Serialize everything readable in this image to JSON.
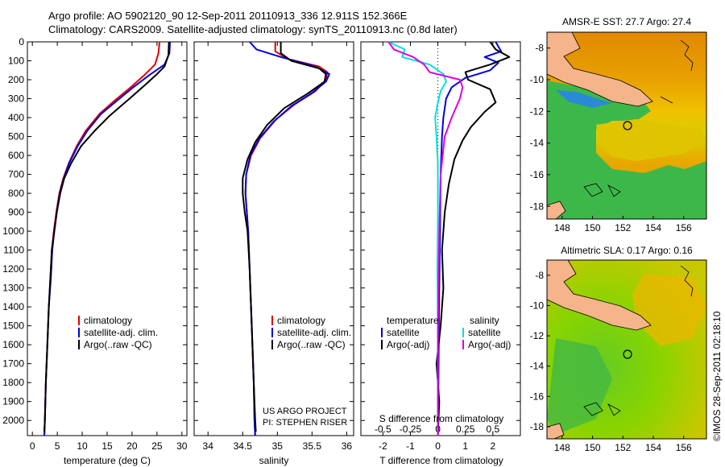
{
  "header": {
    "title_line1": "Argo profile: AO 5902120_90 12-Sep-2011 20110913_336 12.911S 152.366E",
    "title_line2": "Climatology: CARS2009. Satellite-adjusted climatology: synTS_20110913.nc (0.8d later)"
  },
  "colors": {
    "clim": "#e00000",
    "sat": "#0000e0",
    "argo": "#000000",
    "sal_sat": "#00e0e0",
    "sal_argo": "#e000e0"
  },
  "chart_data": [
    {
      "id": "temperature",
      "type": "line",
      "xlabel": "temperature (deg C)",
      "ylabel": "",
      "xlim": [
        -1,
        31
      ],
      "ylim": [
        0,
        2080
      ],
      "xticks": [
        0,
        5,
        10,
        15,
        20,
        25,
        30
      ],
      "yticks": [
        0,
        100,
        200,
        300,
        400,
        500,
        600,
        700,
        800,
        900,
        1000,
        1100,
        1200,
        1300,
        1400,
        1500,
        1600,
        1700,
        1800,
        1900,
        2000
      ],
      "legend": [
        "climatology",
        "satellite-adj. clim.",
        "Argo(..raw -QC)"
      ],
      "series": [
        {
          "name": "climatology",
          "color": "#e00000",
          "points": [
            [
              25.5,
              0
            ],
            [
              25.3,
              60
            ],
            [
              24.6,
              120
            ],
            [
              22.5,
              175
            ],
            [
              19.5,
              245
            ],
            [
              16.5,
              310
            ],
            [
              13.5,
              380
            ],
            [
              10.7,
              470
            ],
            [
              8.9,
              550
            ],
            [
              7.3,
              640
            ],
            [
              6.2,
              720
            ],
            [
              5.4,
              800
            ],
            [
              4.8,
              900
            ],
            [
              4.3,
              1000
            ],
            [
              3.9,
              1100
            ],
            [
              3.6,
              1250
            ],
            [
              3.3,
              1400
            ],
            [
              3.0,
              1600
            ],
            [
              2.7,
              1800
            ],
            [
              2.5,
              2000
            ],
            [
              2.4,
              2080
            ]
          ]
        },
        {
          "name": "satellite-adj. clim.",
          "color": "#0000e0",
          "points": [
            [
              27.6,
              0
            ],
            [
              27.5,
              60
            ],
            [
              26.5,
              120
            ],
            [
              23.5,
              175
            ],
            [
              20.0,
              245
            ],
            [
              17.0,
              310
            ],
            [
              13.8,
              380
            ],
            [
              11.0,
              470
            ],
            [
              9.1,
              550
            ],
            [
              7.4,
              640
            ],
            [
              6.3,
              720
            ],
            [
              5.5,
              800
            ],
            [
              4.9,
              900
            ],
            [
              4.4,
              1000
            ],
            [
              4.0,
              1100
            ],
            [
              3.7,
              1250
            ],
            [
              3.3,
              1400
            ],
            [
              3.0,
              1600
            ],
            [
              2.7,
              1800
            ],
            [
              2.5,
              2000
            ],
            [
              2.4,
              2080
            ]
          ]
        },
        {
          "name": "Argo(..raw -QC)",
          "color": "#000000",
          "points": [
            [
              27.4,
              0
            ],
            [
              27.3,
              70
            ],
            [
              26.5,
              130
            ],
            [
              25.0,
              170
            ],
            [
              22.5,
              230
            ],
            [
              19.5,
              300
            ],
            [
              15.5,
              390
            ],
            [
              12.5,
              470
            ],
            [
              9.8,
              550
            ],
            [
              7.8,
              640
            ],
            [
              6.4,
              720
            ],
            [
              5.6,
              800
            ],
            [
              4.9,
              900
            ],
            [
              4.4,
              1000
            ],
            [
              3.9,
              1100
            ],
            [
              3.6,
              1250
            ],
            [
              3.3,
              1400
            ],
            [
              3.0,
              1600
            ],
            [
              2.7,
              1800
            ],
            [
              2.5,
              2000
            ],
            [
              2.4,
              2060
            ]
          ]
        }
      ]
    },
    {
      "id": "salinity",
      "type": "line",
      "xlabel": "salinity",
      "ylabel": "",
      "xlim": [
        33.8,
        36.1
      ],
      "ylim": [
        0,
        2080
      ],
      "xticks": [
        34,
        34.5,
        35,
        35.5,
        36
      ],
      "legend": [
        "climatology",
        "satellite-adj. clim.",
        "Argo(..raw -QC)"
      ],
      "annotations": [
        "US ARGO PROJECT",
        "PI: STEPHEN RISER"
      ],
      "series": [
        {
          "name": "climatology",
          "color": "#e00000",
          "points": [
            [
              34.97,
              0
            ],
            [
              34.97,
              50
            ],
            [
              35.15,
              90
            ],
            [
              35.6,
              130
            ],
            [
              35.72,
              160
            ],
            [
              35.7,
              200
            ],
            [
              35.55,
              260
            ],
            [
              35.25,
              330
            ],
            [
              34.98,
              410
            ],
            [
              34.75,
              510
            ],
            [
              34.62,
              600
            ],
            [
              34.55,
              700
            ],
            [
              34.54,
              800
            ],
            [
              34.56,
              900
            ],
            [
              34.58,
              1000
            ],
            [
              34.6,
              1200
            ],
            [
              34.63,
              1500
            ],
            [
              34.66,
              1800
            ],
            [
              34.67,
              2000
            ],
            [
              34.68,
              2080
            ]
          ]
        },
        {
          "name": "satellite-adj. clim.",
          "color": "#0000e0",
          "points": [
            [
              34.6,
              0
            ],
            [
              34.7,
              40
            ],
            [
              35.05,
              80
            ],
            [
              35.55,
              130
            ],
            [
              35.75,
              170
            ],
            [
              35.7,
              210
            ],
            [
              35.5,
              270
            ],
            [
              35.2,
              340
            ],
            [
              34.95,
              420
            ],
            [
              34.74,
              510
            ],
            [
              34.61,
              600
            ],
            [
              34.55,
              700
            ],
            [
              34.54,
              800
            ],
            [
              34.56,
              900
            ],
            [
              34.58,
              1000
            ],
            [
              34.6,
              1200
            ],
            [
              34.63,
              1500
            ],
            [
              34.66,
              1800
            ],
            [
              34.67,
              2000
            ],
            [
              34.68,
              2080
            ]
          ]
        },
        {
          "name": "Argo(..raw -QC)",
          "color": "#000000",
          "points": [
            [
              35.05,
              0
            ],
            [
              35.05,
              60
            ],
            [
              35.2,
              100
            ],
            [
              35.6,
              140
            ],
            [
              35.7,
              170
            ],
            [
              35.68,
              210
            ],
            [
              35.45,
              270
            ],
            [
              35.1,
              350
            ],
            [
              34.85,
              440
            ],
            [
              34.68,
              530
            ],
            [
              34.57,
              620
            ],
            [
              34.5,
              720
            ],
            [
              34.5,
              800
            ],
            [
              34.53,
              900
            ],
            [
              34.57,
              1000
            ],
            [
              34.6,
              1200
            ],
            [
              34.63,
              1500
            ],
            [
              34.66,
              1800
            ],
            [
              34.68,
              2000
            ],
            [
              34.69,
              2060
            ]
          ]
        }
      ]
    },
    {
      "id": "differences",
      "type": "line",
      "xlabel": "T difference from climatology",
      "ylabel": "",
      "secondary_xlabel": "S difference from climatology",
      "xlim": [
        -2.8,
        3
      ],
      "ylim": [
        0,
        2080
      ],
      "xticks": [
        -2,
        -1,
        0,
        1,
        2
      ],
      "secondary_xticks": [
        "-0.5",
        "-0.25",
        "0",
        "0.25",
        "0.5"
      ],
      "legend": [
        "temperature",
        "satellite",
        "Argo(-adj)",
        "salinity",
        "satellite",
        "Argo(-adj)"
      ],
      "series": [
        {
          "name": "T satellite",
          "color": "#0000e0",
          "points": [
            [
              2.1,
              0
            ],
            [
              2.3,
              50
            ],
            [
              1.7,
              80
            ],
            [
              2.2,
              110
            ],
            [
              1.9,
              150
            ],
            [
              1.0,
              190
            ],
            [
              0.5,
              240
            ],
            [
              0.3,
              300
            ],
            [
              0.2,
              400
            ],
            [
              0.15,
              500
            ],
            [
              0.1,
              700
            ],
            [
              0.08,
              1000
            ],
            [
              0.04,
              1400
            ],
            [
              0.02,
              1800
            ],
            [
              0,
              2080
            ]
          ]
        },
        {
          "name": "T Argo(-adj)",
          "color": "#000000",
          "points": [
            [
              1.9,
              0
            ],
            [
              2.1,
              40
            ],
            [
              2.6,
              80
            ],
            [
              1.9,
              120
            ],
            [
              1.0,
              160
            ],
            [
              1.1,
              200
            ],
            [
              1.9,
              250
            ],
            [
              2.1,
              320
            ],
            [
              1.7,
              370
            ],
            [
              1.2,
              450
            ],
            [
              0.9,
              520
            ],
            [
              0.6,
              620
            ],
            [
              0.4,
              750
            ],
            [
              0.25,
              900
            ],
            [
              0.15,
              1100
            ],
            [
              0.2,
              1300
            ],
            [
              0.1,
              1500
            ],
            [
              -0.05,
              1700
            ],
            [
              0.05,
              1900
            ],
            [
              0,
              2080
            ]
          ]
        },
        {
          "name": "S satellite",
          "color": "#00e0e0",
          "points": [
            [
              -1.8,
              0
            ],
            [
              -1.2,
              40
            ],
            [
              -1.3,
              80
            ],
            [
              -0.3,
              120
            ],
            [
              0.2,
              170
            ],
            [
              0.3,
              210
            ],
            [
              0.1,
              260
            ],
            [
              0.0,
              320
            ],
            [
              -0.1,
              400
            ],
            [
              -0.05,
              500
            ],
            [
              0.0,
              650
            ],
            [
              0.0,
              900
            ],
            [
              -0.02,
              1200
            ],
            [
              0.0,
              1500
            ],
            [
              0.0,
              2080
            ]
          ]
        },
        {
          "name": "S Argo(-adj)",
          "color": "#e000e0",
          "points": [
            [
              -1.8,
              0
            ],
            [
              -1.6,
              40
            ],
            [
              -0.9,
              80
            ],
            [
              -0.5,
              120
            ],
            [
              -0.3,
              160
            ],
            [
              0.8,
              200
            ],
            [
              0.9,
              240
            ],
            [
              0.8,
              300
            ],
            [
              0.5,
              400
            ],
            [
              0.25,
              500
            ],
            [
              0.1,
              700
            ],
            [
              0.05,
              1000
            ],
            [
              0.0,
              1500
            ],
            [
              0.0,
              2080
            ]
          ]
        }
      ]
    }
  ],
  "maps": [
    {
      "title": "AMSR-E SST: 27.7 Argo: 27.4",
      "xticks": [
        "148",
        "150",
        "152",
        "154",
        "156"
      ],
      "yticks": [
        "-8",
        "-10",
        "-12",
        "-14",
        "-16",
        "-18"
      ],
      "lon": [
        147,
        157.5
      ],
      "lat": [
        -18.8,
        -7
      ],
      "argo_lon": 152.366,
      "argo_lat": -12.911
    },
    {
      "title": "Altimetric SLA: 0.17 Argo: 0.16",
      "xticks": [
        "148",
        "150",
        "152",
        "154",
        "156"
      ],
      "yticks": [
        "-8",
        "-10",
        "-12",
        "-14",
        "-16",
        "-18"
      ],
      "lon": [
        147,
        157.5
      ],
      "lat": [
        -18.8,
        -7
      ],
      "argo_lon": 152.366,
      "argo_lat": -12.911
    }
  ],
  "credit": "©IMOS 28-Sep-2011 02:18:10"
}
